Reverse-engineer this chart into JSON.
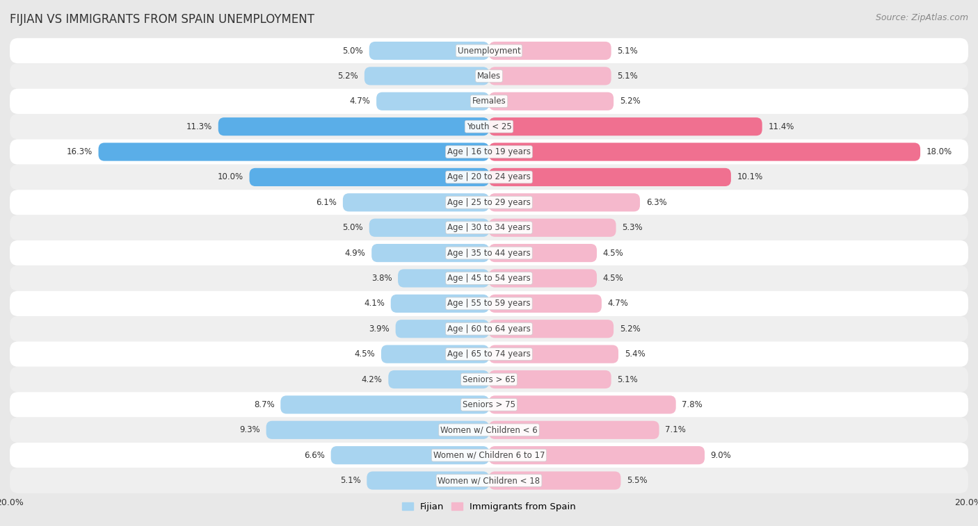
{
  "title": "FIJIAN VS IMMIGRANTS FROM SPAIN UNEMPLOYMENT",
  "source": "Source: ZipAtlas.com",
  "categories": [
    "Unemployment",
    "Males",
    "Females",
    "Youth < 25",
    "Age | 16 to 19 years",
    "Age | 20 to 24 years",
    "Age | 25 to 29 years",
    "Age | 30 to 34 years",
    "Age | 35 to 44 years",
    "Age | 45 to 54 years",
    "Age | 55 to 59 years",
    "Age | 60 to 64 years",
    "Age | 65 to 74 years",
    "Seniors > 65",
    "Seniors > 75",
    "Women w/ Children < 6",
    "Women w/ Children 6 to 17",
    "Women w/ Children < 18"
  ],
  "fijian": [
    5.0,
    5.2,
    4.7,
    11.3,
    16.3,
    10.0,
    6.1,
    5.0,
    4.9,
    3.8,
    4.1,
    3.9,
    4.5,
    4.2,
    8.7,
    9.3,
    6.6,
    5.1
  ],
  "spain": [
    5.1,
    5.1,
    5.2,
    11.4,
    18.0,
    10.1,
    6.3,
    5.3,
    4.5,
    4.5,
    4.7,
    5.2,
    5.4,
    5.1,
    7.8,
    7.1,
    9.0,
    5.5
  ],
  "fijian_color": "#a8d4f0",
  "spain_color": "#f5b8cc",
  "fijian_highlight_color": "#5aaee8",
  "spain_highlight_color": "#f07090",
  "row_light": "#f5f5f5",
  "row_dark": "#e8e8e8",
  "background_color": "#e8e8e8",
  "xlim": 20.0,
  "bar_height": 0.72,
  "title_fontsize": 12,
  "label_fontsize": 8.5,
  "tick_fontsize": 9,
  "source_fontsize": 9,
  "value_fontsize": 8.5
}
